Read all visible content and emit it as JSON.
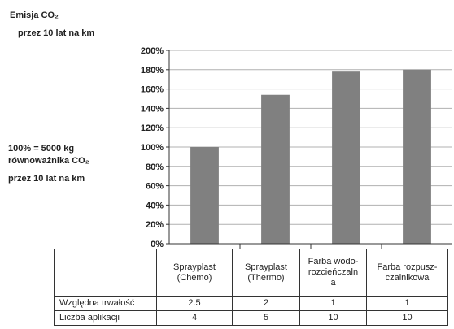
{
  "chart_data": {
    "type": "bar",
    "title_line1": "Emisja CO₂",
    "title_line2": "przez 10 lat na km",
    "ylabel_line1": "100% = 5000 kg",
    "ylabel_line2": "równoważnika CO₂",
    "ylabel_line3": "przez 10 lat na km",
    "categories": [
      "Sprayplast (Chemo)",
      "Sprayplast (Thermo)",
      "Farba wodorozcieńczalna",
      "Farba rozpuszczalnikowa"
    ],
    "values": [
      100,
      154,
      178,
      180
    ],
    "ylim": [
      0,
      200
    ],
    "yticks": [
      "0%",
      "20%",
      "40%",
      "60%",
      "80%",
      "100%",
      "120%",
      "140%",
      "160%",
      "180%",
      "200%"
    ],
    "grid": true,
    "bar_color": "#808080",
    "legend": "none"
  },
  "table": {
    "headers": [
      {
        "l1": "Sprayplast",
        "l2": "(Chemo)",
        "l3": ""
      },
      {
        "l1": "Sprayplast",
        "l2": "(Thermo)",
        "l3": ""
      },
      {
        "l1": "Farba wodo-",
        "l2": "rozcieńczaln",
        "l3": "a"
      },
      {
        "l1": "Farba rozpusz-",
        "l2": "czalnikowa",
        "l3": ""
      }
    ],
    "rows": [
      {
        "label": "Względna trwałość",
        "values": [
          "2.5",
          "2",
          "1",
          "1"
        ]
      },
      {
        "label": "Liczba aplikacji",
        "values": [
          "4",
          "5",
          "10",
          "10"
        ]
      }
    ]
  }
}
